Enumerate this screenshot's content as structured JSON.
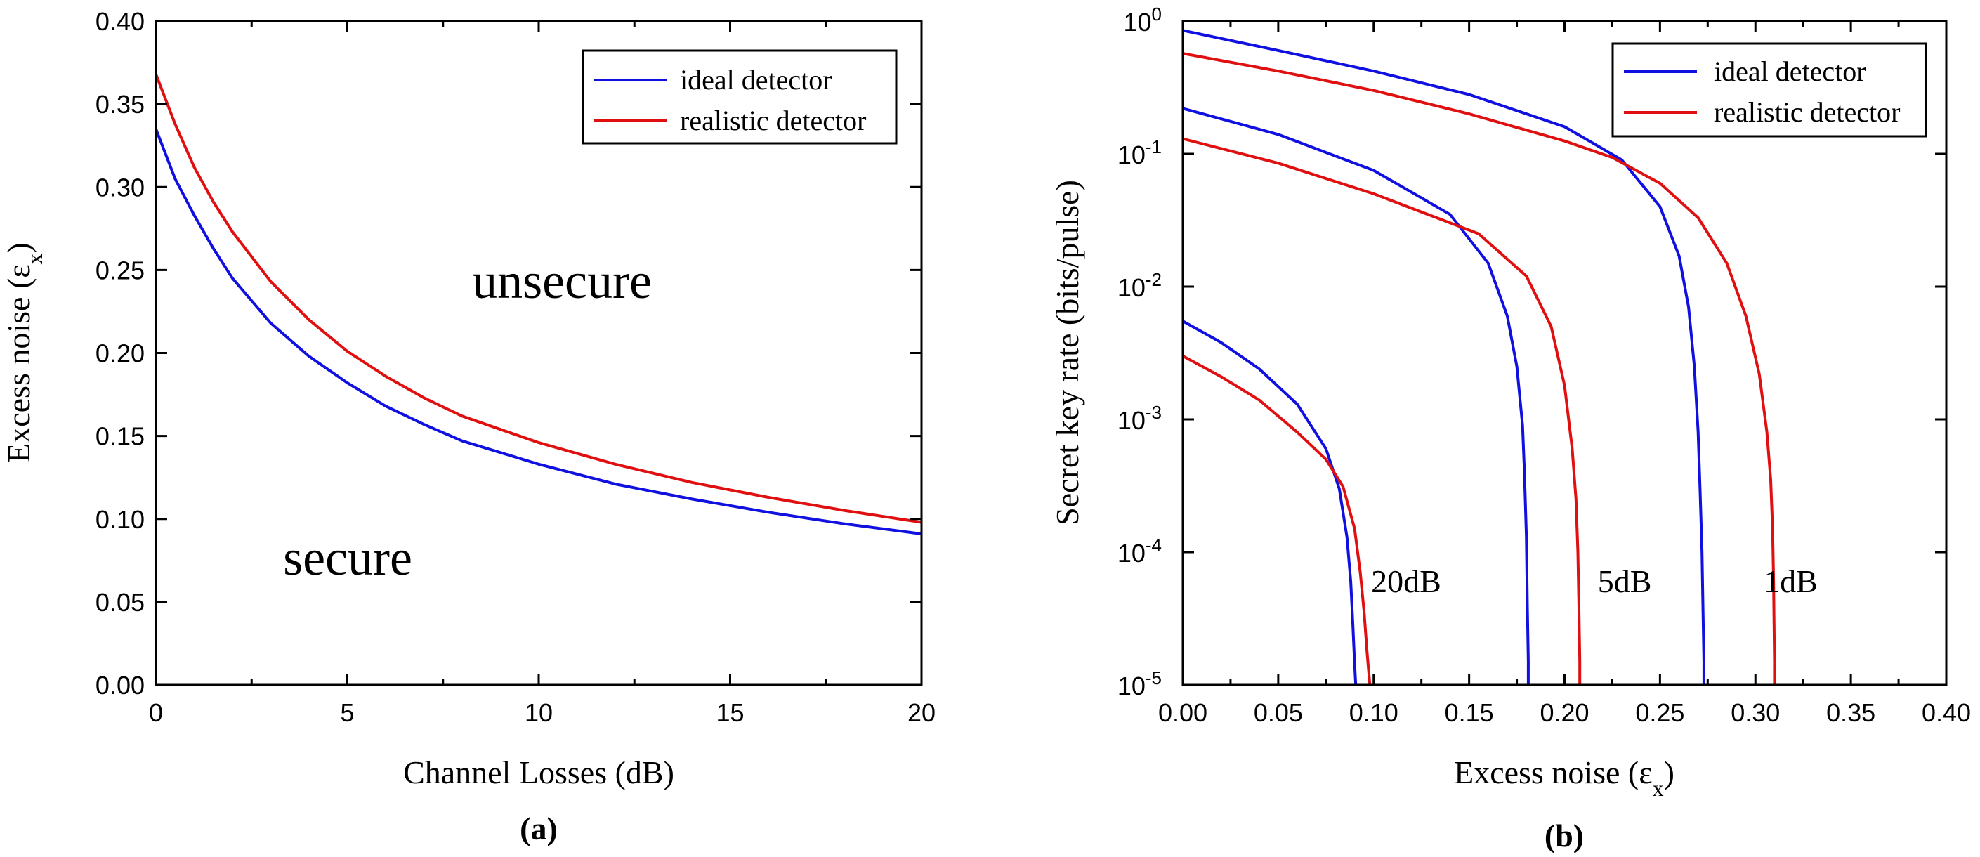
{
  "chart_data": [
    {
      "type": "line",
      "panel_label": "(a)",
      "xlabel": "Channel Losses (dB)",
      "ylabel": "Excess noise (εₓ)",
      "ylabel_main": "Excess noise (ε",
      "ylabel_sub": "x",
      "ylabel_close": ")",
      "xlim": [
        0,
        20
      ],
      "ylim": [
        0.0,
        0.4
      ],
      "xticks": [
        0,
        5,
        10,
        15,
        20
      ],
      "xtick_labels": [
        "0",
        "5",
        "10",
        "15",
        "20"
      ],
      "yticks": [
        0.0,
        0.05,
        0.1,
        0.15,
        0.2,
        0.25,
        0.3,
        0.35,
        0.4
      ],
      "ytick_labels": [
        "0.00",
        "0.05",
        "0.10",
        "0.15",
        "0.20",
        "0.25",
        "0.30",
        "0.35",
        "0.40"
      ],
      "grid": false,
      "legend_position": "top-right",
      "annotations": [
        {
          "text": "unsecure",
          "x": 10.5,
          "y": 0.235
        },
        {
          "text": "secure",
          "x": 5.0,
          "y": 0.075
        }
      ],
      "series": [
        {
          "name": "ideal detector",
          "color": "#1010e0",
          "x": [
            0,
            0.5,
            1,
            1.5,
            2,
            3,
            4,
            5,
            6,
            7,
            8,
            10,
            12,
            14,
            16,
            18,
            20
          ],
          "y": [
            0.335,
            0.305,
            0.283,
            0.263,
            0.245,
            0.218,
            0.198,
            0.182,
            0.168,
            0.157,
            0.147,
            0.133,
            0.121,
            0.112,
            0.104,
            0.097,
            0.091
          ]
        },
        {
          "name": "realistic detector",
          "color": "#e01010",
          "x": [
            0,
            0.5,
            1,
            1.5,
            2,
            3,
            4,
            5,
            6,
            7,
            8,
            10,
            12,
            14,
            16,
            18,
            20
          ],
          "y": [
            0.368,
            0.338,
            0.312,
            0.291,
            0.273,
            0.243,
            0.22,
            0.201,
            0.186,
            0.173,
            0.162,
            0.146,
            0.133,
            0.122,
            0.113,
            0.105,
            0.098
          ]
        }
      ]
    },
    {
      "type": "line",
      "panel_label": "(b)",
      "xlabel_main": "Excess noise (ε",
      "xlabel_sub": "x",
      "xlabel_close": ")",
      "ylabel": "Secret key rate (bits/pulse)",
      "xlim": [
        0.0,
        0.4
      ],
      "ylim": [
        1e-05,
        1
      ],
      "yscale": "log",
      "xticks": [
        0.0,
        0.05,
        0.1,
        0.15,
        0.2,
        0.25,
        0.3,
        0.35,
        0.4
      ],
      "xtick_labels": [
        "0.00",
        "0.05",
        "0.10",
        "0.15",
        "0.20",
        "0.25",
        "0.30",
        "0.35",
        "0.40"
      ],
      "yticks": [
        1,
        0.1,
        0.01,
        0.001,
        0.0001,
        1e-05
      ],
      "ytick_labels": [
        {
          "base": "10",
          "exp": "0"
        },
        {
          "base": "10",
          "exp": "-1"
        },
        {
          "base": "10",
          "exp": "-2"
        },
        {
          "base": "10",
          "exp": "-3"
        },
        {
          "base": "10",
          "exp": "-4"
        },
        {
          "base": "10",
          "exp": "-5"
        }
      ],
      "grid": false,
      "legend_position": "top-right",
      "annotations": [
        {
          "text": "20dB",
          "x": 0.117,
          "y": 5e-05
        },
        {
          "text": "5dB",
          "x": 0.2315,
          "y": 5e-05
        },
        {
          "text": "1dB",
          "x": 0.3185,
          "y": 5e-05
        }
      ],
      "series": [
        {
          "name": "ideal detector",
          "color": "#1010e0",
          "curves": [
            {
              "label": "1dB",
              "x": [
                0.0,
                0.05,
                0.1,
                0.15,
                0.2,
                0.23,
                0.25,
                0.26,
                0.265,
                0.268,
                0.27,
                0.271,
                0.272,
                0.2725,
                0.273,
                0.273
              ],
              "y": [
                0.85,
                0.6,
                0.42,
                0.28,
                0.16,
                0.09,
                0.04,
                0.017,
                0.007,
                0.0025,
                0.0008,
                0.0003,
                0.0001,
                4e-05,
                1.5e-05,
                1e-05
              ]
            },
            {
              "label": "5dB",
              "x": [
                0.0,
                0.05,
                0.1,
                0.14,
                0.16,
                0.17,
                0.175,
                0.178,
                0.179,
                0.18,
                0.1805,
                0.181,
                0.181
              ],
              "y": [
                0.22,
                0.14,
                0.075,
                0.035,
                0.015,
                0.006,
                0.0025,
                0.0009,
                0.0004,
                0.00013,
                4e-05,
                1.5e-05,
                1e-05
              ]
            },
            {
              "label": "20dB",
              "x": [
                0.0,
                0.02,
                0.04,
                0.06,
                0.075,
                0.082,
                0.086,
                0.088,
                0.089,
                0.0898,
                0.0903,
                0.0906,
                0.0906
              ],
              "y": [
                0.0055,
                0.0038,
                0.0024,
                0.0013,
                0.0006,
                0.0003,
                0.00013,
                6e-05,
                3e-05,
                1.7e-05,
                1.2e-05,
                1e-05,
                1e-05
              ]
            }
          ]
        },
        {
          "name": "realistic detector",
          "color": "#e01010",
          "curves": [
            {
              "label": "1dB",
              "x": [
                0.0,
                0.05,
                0.1,
                0.15,
                0.2,
                0.225,
                0.25,
                0.27,
                0.285,
                0.295,
                0.302,
                0.306,
                0.308,
                0.309,
                0.3095,
                0.31,
                0.31
              ],
              "y": [
                0.57,
                0.42,
                0.3,
                0.2,
                0.125,
                0.094,
                0.06,
                0.033,
                0.015,
                0.006,
                0.0022,
                0.0008,
                0.00035,
                0.00015,
                6e-05,
                1.5e-05,
                1e-05
              ]
            },
            {
              "label": "5dB",
              "x": [
                0.0,
                0.05,
                0.1,
                0.155,
                0.18,
                0.193,
                0.2,
                0.204,
                0.206,
                0.207,
                0.2075,
                0.208,
                0.208
              ],
              "y": [
                0.13,
                0.085,
                0.05,
                0.025,
                0.012,
                0.005,
                0.0018,
                0.0006,
                0.00025,
                0.0001,
                4e-05,
                1.5e-05,
                1e-05
              ]
            },
            {
              "label": "20dB",
              "x": [
                0.0,
                0.02,
                0.04,
                0.06,
                0.075,
                0.084,
                0.09,
                0.093,
                0.095,
                0.0965,
                0.0975,
                0.098,
                0.098
              ],
              "y": [
                0.003,
                0.0021,
                0.0014,
                0.0008,
                0.0005,
                0.00031,
                0.00015,
                7e-05,
                3.5e-05,
                1.8e-05,
                1.2e-05,
                1e-05,
                1e-05
              ]
            }
          ]
        }
      ]
    }
  ]
}
